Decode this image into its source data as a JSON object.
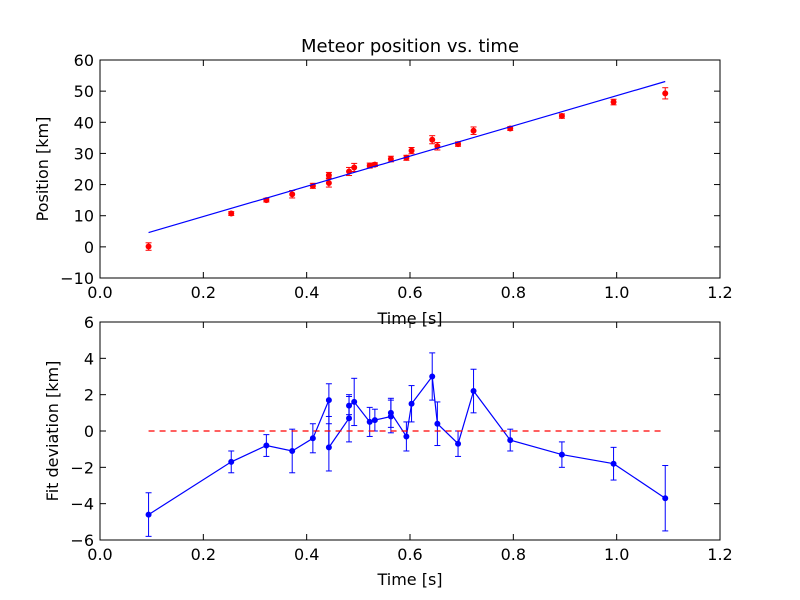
{
  "colors": {
    "background": "#ffffff",
    "axes": "#000000",
    "fit_line": "#0000ff",
    "measured": "#ff0000",
    "deviation": "#0000ff",
    "zero_line": "#ff0000"
  },
  "chart_data": [
    {
      "type": "scatter",
      "title": "Meteor position vs. time",
      "xlabel": "Time [s]",
      "ylabel": "Position [km]",
      "xlim": [
        0.0,
        1.2
      ],
      "ylim": [
        -10,
        60
      ],
      "xticks": [
        "0.0",
        "0.2",
        "0.4",
        "0.6",
        "0.8",
        "1.0",
        "1.2"
      ],
      "yticks": [
        "−10",
        "0",
        "10",
        "20",
        "30",
        "40",
        "50",
        "60"
      ],
      "grid": false,
      "legend": "none",
      "series": [
        {
          "kind": "errorbar-points",
          "color": "#ff0000",
          "points": [
            {
              "x": 0.094,
              "y": 0.1,
              "err": 1.2
            },
            {
              "x": 0.254,
              "y": 10.7,
              "err": 0.6
            },
            {
              "x": 0.322,
              "y": 15.0,
              "err": 0.6
            },
            {
              "x": 0.372,
              "y": 16.9,
              "err": 1.2
            },
            {
              "x": 0.412,
              "y": 19.6,
              "err": 0.8
            },
            {
              "x": 0.443,
              "y": 23.0,
              "err": 0.9
            },
            {
              "x": 0.443,
              "y": 20.5,
              "err": 1.3
            },
            {
              "x": 0.482,
              "y": 24.2,
              "err": 1.3
            },
            {
              "x": 0.492,
              "y": 25.5,
              "err": 1.3
            },
            {
              "x": 0.522,
              "y": 26.1,
              "err": 0.8
            },
            {
              "x": 0.532,
              "y": 26.4,
              "err": 0.6
            },
            {
              "x": 0.563,
              "y": 28.2,
              "err": 0.9
            },
            {
              "x": 0.593,
              "y": 28.6,
              "err": 0.8
            },
            {
              "x": 0.603,
              "y": 30.9,
              "err": 1.0
            },
            {
              "x": 0.643,
              "y": 34.4,
              "err": 1.3
            },
            {
              "x": 0.653,
              "y": 32.3,
              "err": 1.2
            },
            {
              "x": 0.693,
              "y": 33.0,
              "err": 0.7
            },
            {
              "x": 0.723,
              "y": 37.3,
              "err": 1.2
            },
            {
              "x": 0.794,
              "y": 38.0,
              "err": 0.6
            },
            {
              "x": 0.894,
              "y": 42.0,
              "err": 0.7
            },
            {
              "x": 0.994,
              "y": 46.5,
              "err": 0.9
            },
            {
              "x": 1.094,
              "y": 49.3,
              "err": 1.8
            }
          ]
        },
        {
          "kind": "line",
          "color": "#0000ff",
          "x": [
            0.094,
            1.094
          ],
          "y": [
            4.6,
            53.1
          ]
        }
      ]
    },
    {
      "type": "line",
      "title": "",
      "xlabel": "Time [s]",
      "ylabel": "Fit deviation [km]",
      "xlim": [
        0.0,
        1.2
      ],
      "ylim": [
        -6,
        6
      ],
      "xticks": [
        "0.0",
        "0.2",
        "0.4",
        "0.6",
        "0.8",
        "1.0",
        "1.2"
      ],
      "yticks": [
        "−6",
        "−4",
        "−2",
        "0",
        "2",
        "4",
        "6"
      ],
      "grid": false,
      "legend": "none",
      "series": [
        {
          "kind": "errorbar-line",
          "color": "#0000ff",
          "points": [
            {
              "x": 0.094,
              "y": -4.6,
              "err": 1.2
            },
            {
              "x": 0.254,
              "y": -1.7,
              "err": 0.6
            },
            {
              "x": 0.322,
              "y": -0.8,
              "err": 0.6
            },
            {
              "x": 0.372,
              "y": -1.1,
              "err": 1.2
            },
            {
              "x": 0.412,
              "y": -0.4,
              "err": 0.8
            },
            {
              "x": 0.443,
              "y": 1.7,
              "err": 0.9
            },
            {
              "x": 0.443,
              "y": -0.9,
              "err": 1.3
            },
            {
              "x": 0.482,
              "y": 0.7,
              "err": 1.3
            },
            {
              "x": 0.482,
              "y": 1.4,
              "err": 0.5
            },
            {
              "x": 0.492,
              "y": 1.6,
              "err": 1.3
            },
            {
              "x": 0.522,
              "y": 0.5,
              "err": 0.8
            },
            {
              "x": 0.532,
              "y": 0.6,
              "err": 0.6
            },
            {
              "x": 0.563,
              "y": 0.8,
              "err": 0.9
            },
            {
              "x": 0.563,
              "y": 1.0,
              "err": 0.8
            },
            {
              "x": 0.593,
              "y": -0.3,
              "err": 0.8
            },
            {
              "x": 0.603,
              "y": 1.5,
              "err": 1.0
            },
            {
              "x": 0.643,
              "y": 3.0,
              "err": 1.3
            },
            {
              "x": 0.653,
              "y": 0.4,
              "err": 1.2
            },
            {
              "x": 0.693,
              "y": -0.7,
              "err": 0.7
            },
            {
              "x": 0.723,
              "y": 2.2,
              "err": 1.2
            },
            {
              "x": 0.794,
              "y": -0.5,
              "err": 0.6
            },
            {
              "x": 0.894,
              "y": -1.3,
              "err": 0.7
            },
            {
              "x": 0.994,
              "y": -1.8,
              "err": 0.9
            },
            {
              "x": 1.094,
              "y": -3.7,
              "err": 1.8
            }
          ]
        },
        {
          "kind": "dashed-line",
          "color": "#ff0000",
          "x": [
            0.094,
            1.094
          ],
          "y": [
            0,
            0
          ]
        }
      ]
    }
  ]
}
